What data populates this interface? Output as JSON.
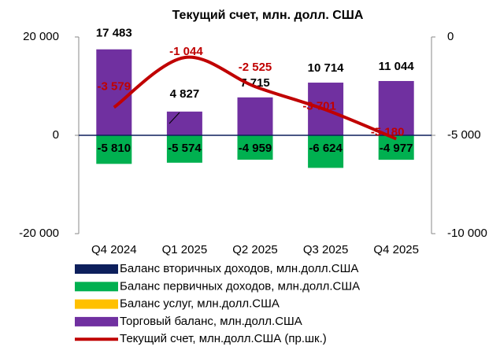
{
  "chart_data": {
    "type": "bar",
    "title": "Текущий счет, млн. долл. США",
    "categories": [
      "Q4 2024",
      "Q1 2025",
      "Q2 2025",
      "Q3 2025",
      "Q4 2025"
    ],
    "series": [
      {
        "name": "Баланс вторичных доходов,  млн.долл.США",
        "color": "#0d1f5c",
        "values": [
          0,
          0,
          0,
          0,
          0
        ]
      },
      {
        "name": "Баланс первичных доходов,  млн.долл.США",
        "color": "#00b050",
        "values": [
          -5810,
          -5574,
          -4959,
          -6624,
          -4977
        ],
        "value_labels": [
          "-5 810",
          "-5 574",
          "-4 959",
          "-6 624",
          "-4 977"
        ]
      },
      {
        "name": "Баланс услуг, млн.долл.США",
        "color": "#ffc000",
        "values": [
          0,
          0,
          0,
          0,
          0
        ]
      },
      {
        "name": "Торговый баланс, млн.долл.США",
        "color": "#7030a0",
        "values": [
          17483,
          4827,
          7715,
          10714,
          11044
        ],
        "value_labels": [
          "17 483",
          "4 827",
          "7 715",
          "10 714",
          "11 044"
        ]
      },
      {
        "name": "Текущий счет,  млн.долл.США (пр.шк.)",
        "color": "#c00000",
        "type": "line",
        "axis": "y2",
        "values": [
          -3579,
          -1044,
          -2525,
          -3701,
          -5180
        ],
        "value_labels": [
          "-3 579",
          "-1 044",
          "-2 525",
          "-3 701",
          "-5 180"
        ]
      }
    ],
    "ylim": [
      -20000,
      20000
    ],
    "yticks": [
      {
        "value": -20000,
        "label": "-20 000"
      },
      0,
      {
        "value": 20000,
        "label": "20 000"
      }
    ],
    "y2lim": [
      -10000,
      0
    ],
    "y2ticks": [
      {
        "value": -10000,
        "label": "-10 000"
      },
      {
        "value": -5000,
        "label": "-5 000"
      },
      0
    ]
  }
}
